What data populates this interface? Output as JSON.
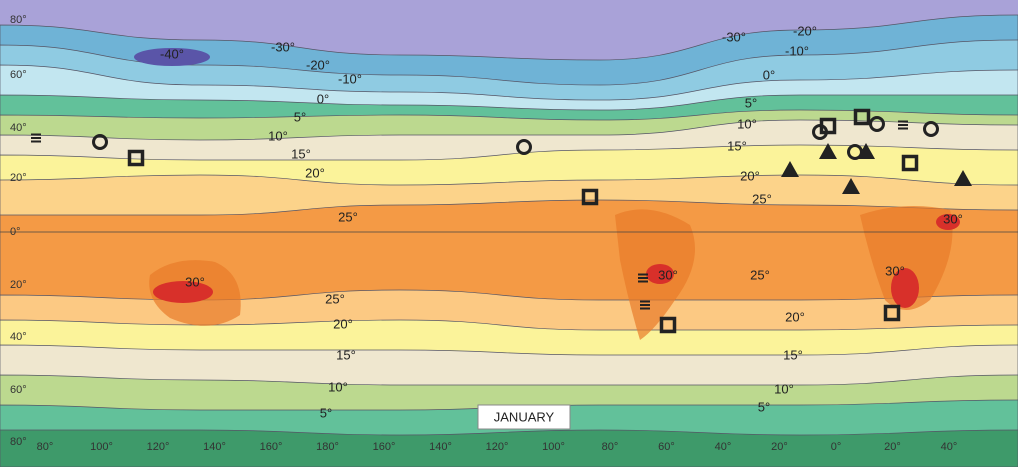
{
  "map": {
    "title": "JANUARY",
    "lat_labels": [
      "80°",
      "60°",
      "40°",
      "20°",
      "0°",
      "20°",
      "40°",
      "60°",
      "80°"
    ],
    "lon_labels": [
      "80°",
      "100°",
      "120°",
      "140°",
      "160°",
      "180°",
      "160°",
      "140°",
      "120°",
      "100°",
      "80°",
      "60°",
      "40°",
      "20°",
      "0°",
      "20°",
      "40°"
    ],
    "isotherm_labels": [
      "-40°",
      "-30°",
      "-20°",
      "-10°",
      "0°",
      "5°",
      "10°",
      "15°",
      "20°",
      "25°",
      "30°",
      "25°",
      "20°",
      "15°",
      "10°",
      "5°",
      "-30°",
      "-20°",
      "-10°",
      "0°",
      "5°",
      "10°",
      "15°",
      "20°",
      "25°",
      "30°",
      "30°",
      "30°",
      "25°",
      "20°",
      "15°",
      "10°",
      "5°"
    ]
  }
}
